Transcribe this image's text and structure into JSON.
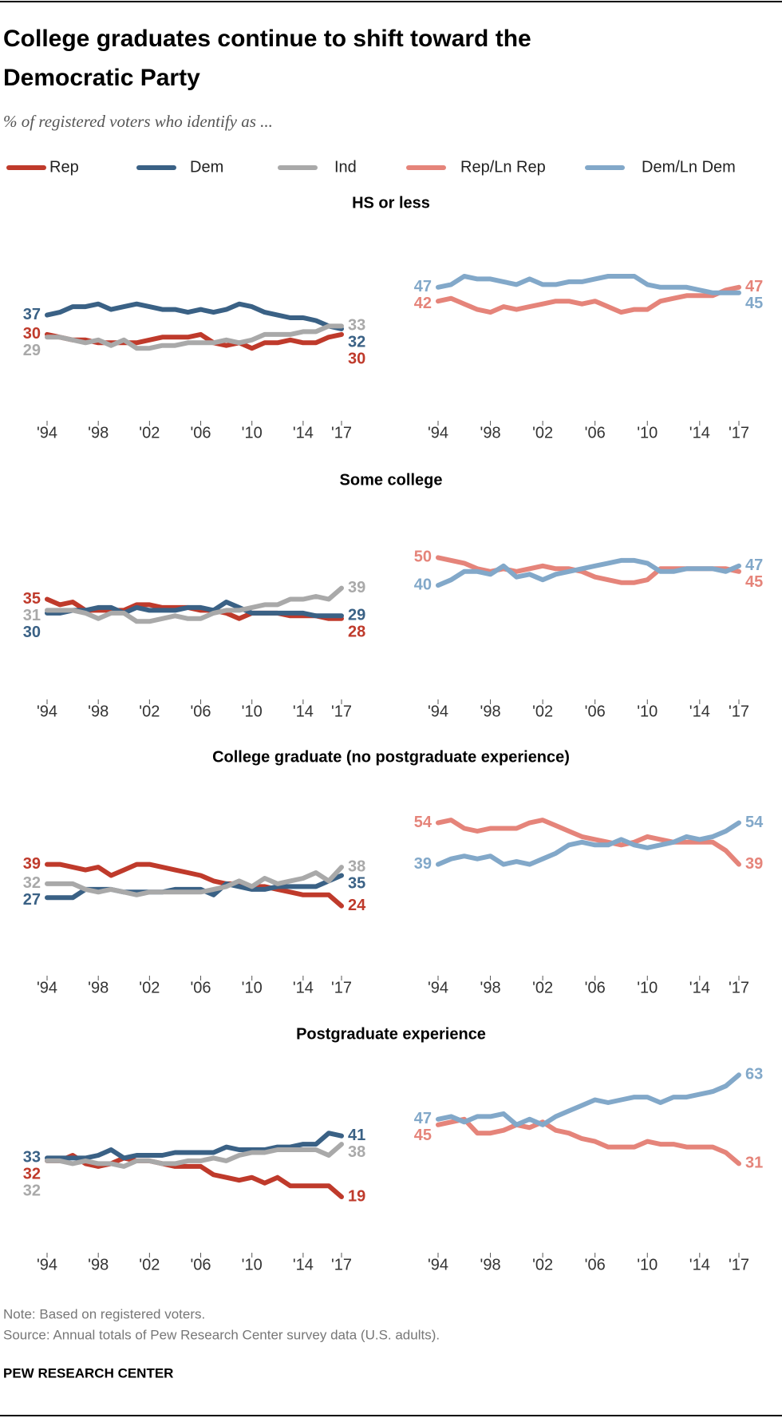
{
  "title_lines": [
    "College graduates continue to shift toward the",
    "Democratic Party"
  ],
  "subtitle": "% of registered voters who identify as ...",
  "note": "Note: Based on registered voters.",
  "source": "Source: Annual totals of Pew Research Center survey data (U.S. adults).",
  "credit": "PEW RESEARCH CENTER",
  "chart_data": [
    {
      "type": "line",
      "title": "HS or less",
      "x": [
        1994,
        1995,
        1996,
        1997,
        1998,
        1999,
        2000,
        2001,
        2002,
        2003,
        2004,
        2005,
        2006,
        2007,
        2008,
        2009,
        2010,
        2011,
        2012,
        2013,
        2014,
        2015,
        2016,
        2017
      ],
      "xlim": [
        1994,
        2017
      ],
      "ylim": [
        0,
        70
      ],
      "xticks": [
        {
          "value": 1994,
          "label": "'94"
        },
        {
          "value": 1998,
          "label": "'98"
        },
        {
          "value": 2002,
          "label": "'02"
        },
        {
          "value": 2006,
          "label": "'06"
        },
        {
          "value": 2010,
          "label": "'10"
        },
        {
          "value": 2014,
          "label": "'14"
        },
        {
          "value": 2017,
          "label": "'17"
        }
      ],
      "series": [
        {
          "name": "Rep",
          "color": "#bf3a2b",
          "values": [
            30,
            29,
            28,
            28,
            27,
            27,
            27,
            27,
            28,
            29,
            29,
            29,
            30,
            27,
            26,
            27,
            25,
            27,
            27,
            28,
            27,
            27,
            29,
            30
          ]
        },
        {
          "name": "Dem",
          "color": "#3a6185",
          "values": [
            37,
            38,
            40,
            40,
            41,
            39,
            40,
            41,
            40,
            39,
            39,
            38,
            39,
            38,
            39,
            41,
            40,
            38,
            37,
            36,
            36,
            35,
            33,
            32
          ]
        },
        {
          "name": "Ind",
          "color": "#a9a9a9",
          "values": [
            29,
            29,
            28,
            27,
            28,
            26,
            28,
            25,
            25,
            26,
            26,
            27,
            27,
            27,
            28,
            27,
            28,
            30,
            30,
            30,
            31,
            31,
            33,
            33
          ]
        }
      ]
    },
    {
      "type": "line",
      "x": [
        1994,
        1995,
        1996,
        1997,
        1998,
        1999,
        2000,
        2001,
        2002,
        2003,
        2004,
        2005,
        2006,
        2007,
        2008,
        2009,
        2010,
        2011,
        2012,
        2013,
        2014,
        2015,
        2016,
        2017
      ],
      "xlim": [
        1994,
        2017
      ],
      "ylim": [
        0,
        70
      ],
      "xticks": [
        {
          "value": 1994,
          "label": "'94"
        },
        {
          "value": 1998,
          "label": "'98"
        },
        {
          "value": 2002,
          "label": "'02"
        },
        {
          "value": 2006,
          "label": "'06"
        },
        {
          "value": 2010,
          "label": "'10"
        },
        {
          "value": 2014,
          "label": "'14"
        },
        {
          "value": 2017,
          "label": "'17"
        }
      ],
      "series": [
        {
          "name": "Rep/Ln Rep",
          "color": "#e5847a",
          "values": [
            42,
            43,
            41,
            39,
            38,
            40,
            39,
            40,
            41,
            42,
            42,
            41,
            42,
            40,
            38,
            39,
            39,
            42,
            43,
            44,
            44,
            44,
            46,
            47
          ]
        },
        {
          "name": "Dem/Ln Dem",
          "color": "#82a8c9",
          "values": [
            47,
            48,
            51,
            50,
            50,
            49,
            48,
            50,
            48,
            48,
            49,
            49,
            50,
            51,
            51,
            51,
            48,
            47,
            47,
            47,
            46,
            45,
            45,
            45
          ]
        }
      ]
    },
    {
      "type": "line",
      "title": "Some college",
      "x": [
        1994,
        1995,
        1996,
        1997,
        1998,
        1999,
        2000,
        2001,
        2002,
        2003,
        2004,
        2005,
        2006,
        2007,
        2008,
        2009,
        2010,
        2011,
        2012,
        2013,
        2014,
        2015,
        2016,
        2017
      ],
      "xlim": [
        1994,
        2017
      ],
      "ylim": [
        0,
        70
      ],
      "xticks": [
        {
          "value": 1994,
          "label": "'94"
        },
        {
          "value": 1998,
          "label": "'98"
        },
        {
          "value": 2002,
          "label": "'02"
        },
        {
          "value": 2006,
          "label": "'06"
        },
        {
          "value": 2010,
          "label": "'10"
        },
        {
          "value": 2014,
          "label": "'14"
        },
        {
          "value": 2017,
          "label": "'17"
        }
      ],
      "series": [
        {
          "name": "Rep",
          "color": "#bf3a2b",
          "values": [
            35,
            33,
            34,
            31,
            31,
            31,
            31,
            33,
            33,
            32,
            32,
            32,
            31,
            31,
            30,
            28,
            30,
            30,
            30,
            29,
            29,
            29,
            28,
            28
          ]
        },
        {
          "name": "Dem",
          "color": "#3a6185",
          "values": [
            30,
            30,
            31,
            31,
            32,
            32,
            30,
            32,
            31,
            31,
            31,
            32,
            32,
            31,
            34,
            32,
            30,
            30,
            30,
            30,
            30,
            29,
            29,
            29
          ]
        },
        {
          "name": "Ind",
          "color": "#a9a9a9",
          "values": [
            31,
            31,
            31,
            30,
            28,
            30,
            30,
            27,
            27,
            28,
            29,
            28,
            28,
            30,
            31,
            31,
            32,
            33,
            33,
            35,
            35,
            36,
            35,
            39
          ]
        }
      ]
    },
    {
      "type": "line",
      "x": [
        1994,
        1995,
        1996,
        1997,
        1998,
        1999,
        2000,
        2001,
        2002,
        2003,
        2004,
        2005,
        2006,
        2007,
        2008,
        2009,
        2010,
        2011,
        2012,
        2013,
        2014,
        2015,
        2016,
        2017
      ],
      "xlim": [
        1994,
        2017
      ],
      "ylim": [
        0,
        70
      ],
      "xticks": [
        {
          "value": 1994,
          "label": "'94"
        },
        {
          "value": 1998,
          "label": "'98"
        },
        {
          "value": 2002,
          "label": "'02"
        },
        {
          "value": 2006,
          "label": "'06"
        },
        {
          "value": 2010,
          "label": "'10"
        },
        {
          "value": 2014,
          "label": "'14"
        },
        {
          "value": 2017,
          "label": "'17"
        }
      ],
      "series": [
        {
          "name": "Rep/Ln Rep",
          "color": "#e5847a",
          "values": [
            50,
            49,
            48,
            46,
            45,
            46,
            45,
            46,
            47,
            46,
            46,
            45,
            43,
            42,
            41,
            41,
            42,
            46,
            46,
            46,
            46,
            46,
            46,
            45
          ]
        },
        {
          "name": "Dem/Ln Dem",
          "color": "#82a8c9",
          "values": [
            40,
            42,
            45,
            45,
            44,
            47,
            43,
            44,
            42,
            44,
            45,
            46,
            47,
            48,
            49,
            49,
            48,
            45,
            45,
            46,
            46,
            46,
            45,
            47
          ]
        }
      ]
    },
    {
      "type": "line",
      "title": "College graduate (no postgraduate experience)",
      "x": [
        1994,
        1995,
        1996,
        1997,
        1998,
        1999,
        2000,
        2001,
        2002,
        2003,
        2004,
        2005,
        2006,
        2007,
        2008,
        2009,
        2010,
        2011,
        2012,
        2013,
        2014,
        2015,
        2016,
        2017
      ],
      "xlim": [
        1994,
        2017
      ],
      "ylim": [
        0,
        70
      ],
      "xticks": [
        {
          "value": 1994,
          "label": "'94"
        },
        {
          "value": 1998,
          "label": "'98"
        },
        {
          "value": 2002,
          "label": "'02"
        },
        {
          "value": 2006,
          "label": "'06"
        },
        {
          "value": 2010,
          "label": "'10"
        },
        {
          "value": 2014,
          "label": "'14"
        },
        {
          "value": 2017,
          "label": "'17"
        }
      ],
      "series": [
        {
          "name": "Rep",
          "color": "#bf3a2b",
          "values": [
            39,
            39,
            38,
            37,
            38,
            35,
            37,
            39,
            39,
            38,
            37,
            36,
            35,
            33,
            32,
            32,
            31,
            31,
            30,
            29,
            28,
            28,
            28,
            24
          ]
        },
        {
          "name": "Dem",
          "color": "#3a6185",
          "values": [
            27,
            27,
            27,
            30,
            30,
            30,
            29,
            29,
            29,
            29,
            30,
            30,
            30,
            28,
            32,
            31,
            30,
            30,
            31,
            31,
            31,
            31,
            33,
            35
          ]
        },
        {
          "name": "Ind",
          "color": "#a9a9a9",
          "values": [
            32,
            32,
            32,
            30,
            29,
            30,
            29,
            28,
            29,
            29,
            29,
            29,
            29,
            30,
            31,
            33,
            31,
            34,
            32,
            33,
            34,
            36,
            33,
            38
          ]
        }
      ]
    },
    {
      "type": "line",
      "x": [
        1994,
        1995,
        1996,
        1997,
        1998,
        1999,
        2000,
        2001,
        2002,
        2003,
        2004,
        2005,
        2006,
        2007,
        2008,
        2009,
        2010,
        2011,
        2012,
        2013,
        2014,
        2015,
        2016,
        2017
      ],
      "xlim": [
        1994,
        2017
      ],
      "ylim": [
        0,
        70
      ],
      "xticks": [
        {
          "value": 1994,
          "label": "'94"
        },
        {
          "value": 1998,
          "label": "'98"
        },
        {
          "value": 2002,
          "label": "'02"
        },
        {
          "value": 2006,
          "label": "'06"
        },
        {
          "value": 2010,
          "label": "'10"
        },
        {
          "value": 2014,
          "label": "'14"
        },
        {
          "value": 2017,
          "label": "'17"
        }
      ],
      "series": [
        {
          "name": "Rep/Ln Rep",
          "color": "#e5847a",
          "values": [
            54,
            55,
            52,
            51,
            52,
            52,
            52,
            54,
            55,
            53,
            51,
            49,
            48,
            47,
            46,
            47,
            49,
            48,
            47,
            47,
            47,
            47,
            44,
            39
          ]
        },
        {
          "name": "Dem/Ln Dem",
          "color": "#82a8c9",
          "values": [
            39,
            41,
            42,
            41,
            42,
            39,
            40,
            39,
            41,
            43,
            46,
            47,
            46,
            46,
            48,
            46,
            45,
            46,
            47,
            49,
            48,
            49,
            51,
            54
          ]
        }
      ]
    },
    {
      "type": "line",
      "title": "Postgraduate experience",
      "x": [
        1994,
        1995,
        1996,
        1997,
        1998,
        1999,
        2000,
        2001,
        2002,
        2003,
        2004,
        2005,
        2006,
        2007,
        2008,
        2009,
        2010,
        2011,
        2012,
        2013,
        2014,
        2015,
        2016,
        2017
      ],
      "xlim": [
        1994,
        2017
      ],
      "ylim": [
        0,
        70
      ],
      "xticks": [
        {
          "value": 1994,
          "label": "'94"
        },
        {
          "value": 1998,
          "label": "'98"
        },
        {
          "value": 2002,
          "label": "'02"
        },
        {
          "value": 2006,
          "label": "'06"
        },
        {
          "value": 2010,
          "label": "'10"
        },
        {
          "value": 2014,
          "label": "'14"
        },
        {
          "value": 2017,
          "label": "'17"
        }
      ],
      "series": [
        {
          "name": "Rep",
          "color": "#bf3a2b",
          "values": [
            32,
            32,
            34,
            31,
            30,
            31,
            33,
            32,
            32,
            31,
            30,
            30,
            30,
            27,
            26,
            25,
            26,
            24,
            26,
            23,
            23,
            23,
            23,
            19
          ]
        },
        {
          "name": "Dem",
          "color": "#3a6185",
          "values": [
            33,
            33,
            33,
            33,
            34,
            36,
            33,
            34,
            34,
            34,
            35,
            35,
            35,
            35,
            37,
            36,
            36,
            36,
            37,
            37,
            38,
            38,
            42,
            41
          ]
        },
        {
          "name": "Ind",
          "color": "#a9a9a9",
          "values": [
            32,
            32,
            31,
            32,
            31,
            31,
            30,
            32,
            32,
            31,
            31,
            32,
            32,
            33,
            32,
            34,
            35,
            35,
            36,
            36,
            36,
            36,
            34,
            38
          ]
        }
      ]
    },
    {
      "type": "line",
      "x": [
        1994,
        1995,
        1996,
        1997,
        1998,
        1999,
        2000,
        2001,
        2002,
        2003,
        2004,
        2005,
        2006,
        2007,
        2008,
        2009,
        2010,
        2011,
        2012,
        2013,
        2014,
        2015,
        2016,
        2017
      ],
      "xlim": [
        1994,
        2017
      ],
      "ylim": [
        0,
        70
      ],
      "xticks": [
        {
          "value": 1994,
          "label": "'94"
        },
        {
          "value": 1998,
          "label": "'98"
        },
        {
          "value": 2002,
          "label": "'02"
        },
        {
          "value": 2006,
          "label": "'06"
        },
        {
          "value": 2010,
          "label": "'10"
        },
        {
          "value": 2014,
          "label": "'14"
        },
        {
          "value": 2017,
          "label": "'17"
        }
      ],
      "series": [
        {
          "name": "Rep/Ln Rep",
          "color": "#e5847a",
          "values": [
            45,
            46,
            47,
            42,
            42,
            43,
            45,
            44,
            46,
            43,
            42,
            40,
            39,
            37,
            37,
            37,
            39,
            38,
            38,
            37,
            37,
            37,
            35,
            31
          ]
        },
        {
          "name": "Dem/Ln Dem",
          "color": "#82a8c9",
          "values": [
            47,
            48,
            46,
            48,
            48,
            49,
            45,
            47,
            45,
            48,
            50,
            52,
            54,
            53,
            54,
            55,
            55,
            53,
            55,
            55,
            56,
            57,
            59,
            63
          ]
        }
      ]
    }
  ]
}
